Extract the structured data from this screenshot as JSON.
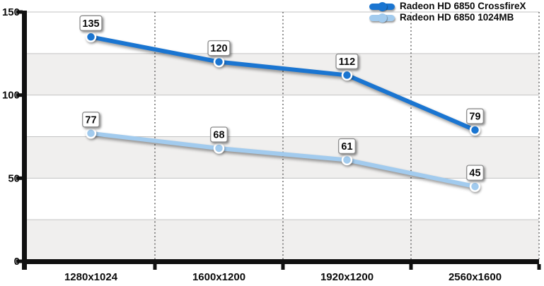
{
  "chart_data": {
    "type": "line",
    "categories": [
      "1280x1024",
      "1600x1200",
      "1920x1200",
      "2560x1600"
    ],
    "series": [
      {
        "name": "Radeon HD 6850 CrossfireX",
        "values": [
          135,
          120,
          112,
          79
        ],
        "color": "#1a75d1"
      },
      {
        "name": "Radeon HD 6850 1024MB",
        "values": [
          77,
          68,
          61,
          45
        ],
        "color": "#a2cbee"
      }
    ],
    "title": "",
    "xlabel": "",
    "ylabel": "",
    "ylim": [
      0,
      150
    ],
    "yticks": [
      0,
      50,
      100,
      150
    ],
    "grid_step": 25,
    "grid_on": true,
    "legend_position": "top-right",
    "data_labels_shown": true,
    "colors": {
      "band": "#f0efee",
      "gridline": "#c3c3c3",
      "dotted_separator": "#5f5f5f",
      "axis": "#101010",
      "label_box_fill": "#ffffff",
      "label_box_border": "#8d8d8d",
      "marker_ring": "#ffffff"
    }
  }
}
